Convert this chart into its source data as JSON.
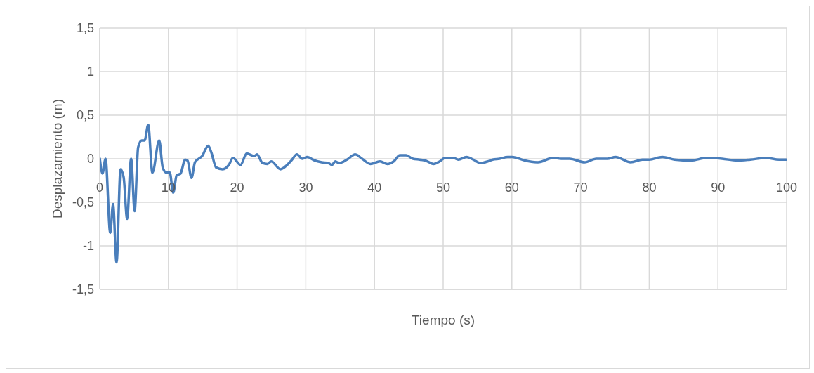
{
  "chart_data": {
    "type": "line",
    "xlabel": "Tiempo (s)",
    "ylabel": "Desplazamiento (m)",
    "x": [
      0,
      0.4,
      0.85,
      1.53,
      1.94,
      2.45,
      3.03,
      3.48,
      3.99,
      4.57,
      5.08,
      5.59,
      6.1,
      6.54,
      7.06,
      7.67,
      8.66,
      9.17,
      9.71,
      10.2,
      10.7,
      11.2,
      11.76,
      12.44,
      12.78,
      13.36,
      13.87,
      14.9,
      15.8,
      16.26,
      16.94,
      17.89,
      18.81,
      19.4,
      20.5,
      21.4,
      22.5,
      22.9,
      23.7,
      24.4,
      24.97,
      26.3,
      27.9,
      28.7,
      29.5,
      30.2,
      31.3,
      32.3,
      33.3,
      33.8,
      34.3,
      34.8,
      36.0,
      37.2,
      38.2,
      39.4,
      40.8,
      41.9,
      42.8,
      43.7,
      44.6,
      45.6,
      46.6,
      47.4,
      48.6,
      49.5,
      50.3,
      51.5,
      52.2,
      53.4,
      54.4,
      55.4,
      56.5,
      57.2,
      58.2,
      59.4,
      60.05,
      61.9,
      63.8,
      66.0,
      67.2,
      68.4,
      70.6,
      72.3,
      73.9,
      75.1,
      77.3,
      79.0,
      80.0,
      81.9,
      83.7,
      86.1,
      88.3,
      90.6,
      92.8,
      94.7,
      97.0,
      98.9,
      100
    ],
    "series": [
      {
        "color": "#4a7ebb",
        "values": [
          0.01,
          -0.17,
          0,
          -0.85,
          -0.52,
          -1.19,
          -0.12,
          -0.21,
          -0.69,
          0,
          -0.6,
          0.13,
          0.21,
          0.21,
          0.39,
          -0.16,
          0.21,
          -0.1,
          -0.16,
          -0.16,
          -0.39,
          -0.19,
          -0.17,
          -0.01,
          -0.02,
          -0.22,
          -0.04,
          0.03,
          0.15,
          0.07,
          -0.1,
          -0.12,
          -0.07,
          0.01,
          -0.07,
          0.06,
          0.03,
          0.05,
          -0.05,
          -0.06,
          -0.03,
          -0.12,
          -0.02,
          0.05,
          0,
          0.02,
          -0.02,
          -0.04,
          -0.05,
          -0.07,
          -0.03,
          -0.05,
          -0.01,
          0.05,
          0,
          -0.06,
          -0.03,
          -0.06,
          -0.03,
          0.04,
          0.04,
          0,
          -0.01,
          -0.02,
          -0.06,
          -0.03,
          0.01,
          0.01,
          -0.01,
          0.02,
          -0.01,
          -0.05,
          -0.03,
          -0.01,
          0,
          0.02,
          0.02,
          -0.02,
          -0.04,
          0.01,
          0,
          0,
          -0.04,
          0,
          0,
          0.02,
          -0.04,
          -0.01,
          -0.01,
          0.02,
          -0.01,
          -0.02,
          0.01,
          0,
          -0.02,
          -0.01,
          0.01,
          -0.01,
          -0.01
        ]
      }
    ],
    "xlim": [
      0,
      100
    ],
    "xticks": [
      0,
      10,
      20,
      30,
      40,
      50,
      60,
      70,
      80,
      90,
      100
    ],
    "ylim": [
      -1.5,
      1.5
    ],
    "yticks": [
      {
        "value": -1.5,
        "label": "-1,5"
      },
      {
        "value": -1,
        "label": "-1"
      },
      {
        "value": -0.5,
        "label": "-0,5"
      },
      0,
      {
        "value": 0.5,
        "label": "0,5"
      },
      1,
      {
        "value": 1.5,
        "label": "1,5"
      }
    ],
    "grid": true,
    "marker": "none",
    "line_style": "solid"
  }
}
